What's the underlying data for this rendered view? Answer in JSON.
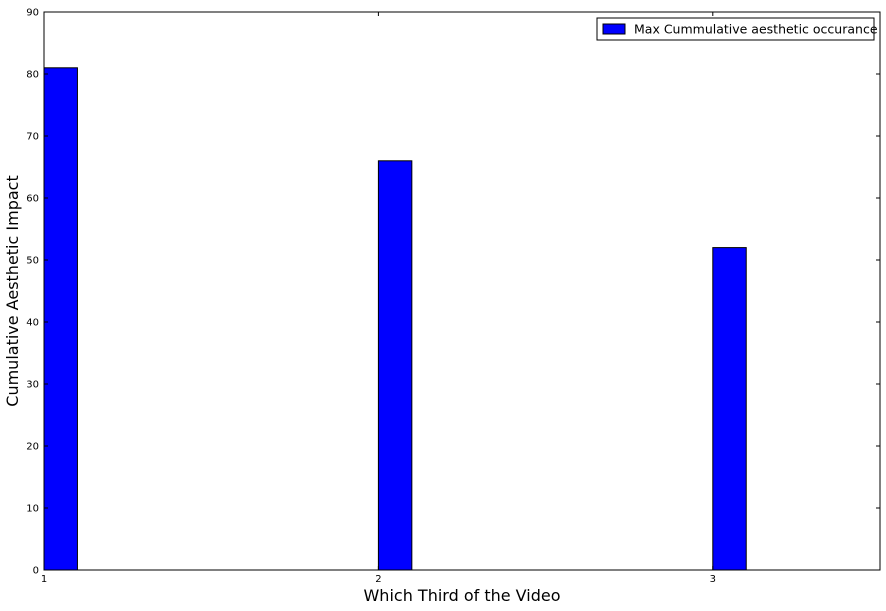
{
  "chart_data": {
    "type": "bar",
    "title": "",
    "xlabel": "Which Third of the Video",
    "ylabel": "Cumulative Aesthetic Impact",
    "categories": [
      "1",
      "2",
      "3"
    ],
    "x": [
      1,
      2,
      3
    ],
    "series": [
      {
        "name": "Max Cummulative aesthetic occurance",
        "values": [
          81,
          66,
          52
        ],
        "color": "#0000ff"
      }
    ],
    "xlim": [
      1,
      3.5
    ],
    "ylim": [
      0,
      90
    ],
    "yticks": [
      0,
      10,
      20,
      30,
      40,
      50,
      60,
      70,
      80,
      90
    ],
    "xticks": [
      1,
      2,
      3
    ],
    "bar_width": 0.1,
    "grid": false,
    "legend_position": "top-right"
  }
}
